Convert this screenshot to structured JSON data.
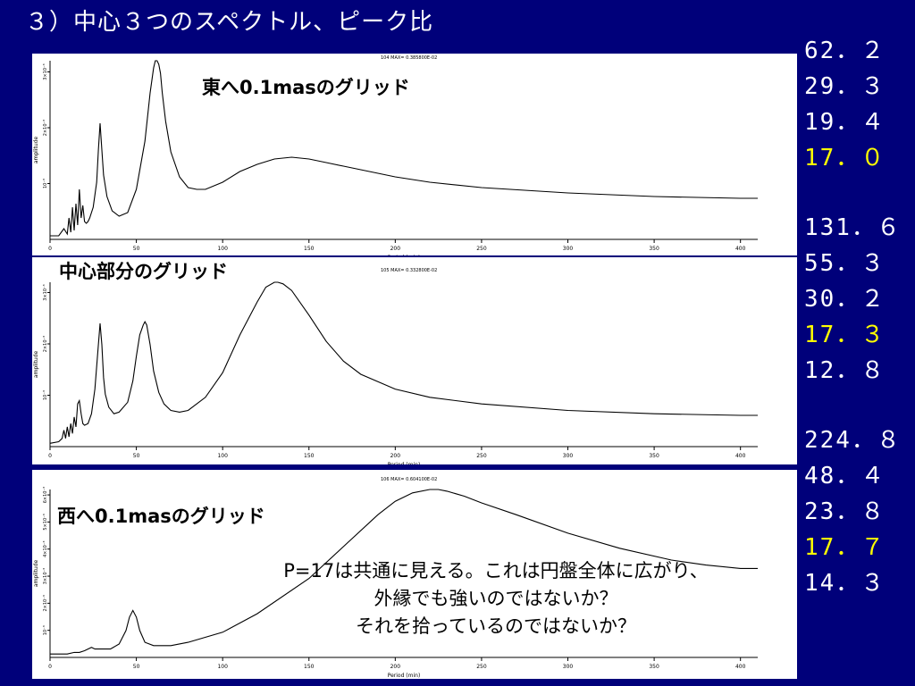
{
  "title": "３）中心３つのスペクトル、ピーク比",
  "values": {
    "group1": [
      "62．２",
      "29．３",
      "19．４",
      "17．０"
    ],
    "group1_highlight": 3,
    "group2": [
      "131．６",
      "55．３",
      "30．２",
      "17．３",
      "12．８"
    ],
    "group2_highlight": 3,
    "group3": [
      "224．８",
      "48．４",
      "23．８",
      "17．７",
      "14．３"
    ],
    "group3_highlight": 3
  },
  "note": {
    "line1": "P=17は共通に見える。これは円盤全体に広がり、",
    "line2": "外縁でも強いのではないか？",
    "line3": "それを拾っているのではないか？"
  },
  "colors": {
    "background": "#00007a",
    "text": "#ffffff",
    "highlight": "#ffff00",
    "curve": "#000000"
  },
  "chart_data": [
    {
      "type": "line",
      "label": "東へ0.1masのグリッド",
      "header": "104 MAX=  0.385800E-02",
      "xlabel": "Period (min)",
      "ylabel": "amplitude",
      "xlim": [
        0,
        410
      ],
      "xticks": [
        "0",
        "50",
        "100",
        "150",
        "200",
        "250",
        "300",
        "350",
        "400"
      ],
      "yticks": [
        "10⁻³",
        "2×10⁻³",
        "3×10⁻³"
      ],
      "peaks": [
        62.2,
        29.3,
        19.4,
        17.0
      ],
      "x": [
        0,
        5,
        8,
        10,
        11,
        12,
        13,
        14,
        15,
        16,
        17,
        18,
        19,
        20,
        21,
        22,
        23,
        25,
        27,
        28,
        29,
        30,
        31,
        33,
        36,
        40,
        45,
        50,
        55,
        58,
        60,
        61,
        62,
        63,
        64,
        65,
        67,
        70,
        75,
        80,
        85,
        90,
        100,
        110,
        120,
        130,
        140,
        150,
        160,
        170,
        180,
        200,
        220,
        250,
        300,
        350,
        400,
        410
      ],
      "y": [
        0.02,
        0.02,
        0.06,
        0.03,
        0.12,
        0.04,
        0.18,
        0.05,
        0.2,
        0.08,
        0.28,
        0.12,
        0.19,
        0.1,
        0.09,
        0.1,
        0.12,
        0.18,
        0.32,
        0.5,
        0.65,
        0.5,
        0.36,
        0.24,
        0.16,
        0.13,
        0.15,
        0.28,
        0.55,
        0.82,
        0.96,
        1.0,
        1.0,
        0.98,
        0.93,
        0.82,
        0.66,
        0.49,
        0.35,
        0.29,
        0.28,
        0.28,
        0.32,
        0.38,
        0.42,
        0.45,
        0.46,
        0.45,
        0.43,
        0.41,
        0.39,
        0.35,
        0.32,
        0.29,
        0.26,
        0.24,
        0.23,
        0.23
      ]
    },
    {
      "type": "line",
      "label": "中心部分のグリッド",
      "header": "105 MAX=  0.332800E-02",
      "xlabel": "Period (min)",
      "ylabel": "amplitude",
      "xlim": [
        0,
        410
      ],
      "xticks": [
        "0",
        "50",
        "100",
        "150",
        "200",
        "250",
        "300",
        "350",
        "400"
      ],
      "yticks": [
        "10⁻³",
        "2×10⁻³",
        "3×10⁻³"
      ],
      "peaks": [
        131.6,
        55.3,
        30.2,
        17.3,
        12.8
      ],
      "x": [
        0,
        5,
        7,
        8,
        9,
        10,
        11,
        12,
        13,
        14,
        15,
        16,
        17,
        18,
        19,
        20,
        22,
        24,
        26,
        28,
        29,
        30,
        31,
        32,
        34,
        37,
        40,
        45,
        48,
        50,
        52,
        54,
        55,
        56,
        58,
        60,
        63,
        66,
        70,
        75,
        80,
        90,
        100,
        110,
        120,
        125,
        130,
        132,
        135,
        140,
        150,
        160,
        170,
        180,
        200,
        220,
        250,
        300,
        350,
        400,
        410
      ],
      "y": [
        0.02,
        0.03,
        0.05,
        0.1,
        0.05,
        0.12,
        0.06,
        0.14,
        0.08,
        0.18,
        0.12,
        0.26,
        0.28,
        0.2,
        0.14,
        0.13,
        0.14,
        0.2,
        0.35,
        0.62,
        0.75,
        0.62,
        0.42,
        0.32,
        0.24,
        0.2,
        0.21,
        0.27,
        0.4,
        0.55,
        0.68,
        0.74,
        0.76,
        0.74,
        0.62,
        0.46,
        0.33,
        0.26,
        0.22,
        0.21,
        0.22,
        0.3,
        0.45,
        0.68,
        0.88,
        0.97,
        1.0,
        1.0,
        0.99,
        0.95,
        0.8,
        0.64,
        0.52,
        0.44,
        0.35,
        0.3,
        0.26,
        0.22,
        0.2,
        0.19,
        0.19
      ]
    },
    {
      "type": "line",
      "label": "西へ0.1masのグリッド",
      "header": "106 MAX=  0.604100E-02",
      "xlabel": "Period (min)",
      "ylabel": "amplitude",
      "xlim": [
        0,
        410
      ],
      "xticks": [
        "0",
        "50",
        "100",
        "150",
        "200",
        "250",
        "300",
        "350",
        "400"
      ],
      "yticks": [
        "10⁻³",
        "2×10⁻³",
        "3×10⁻³",
        "4×10⁻³",
        "5×10⁻³",
        "6×10⁻³"
      ],
      "peaks": [
        224.8,
        48.4,
        23.8,
        17.7,
        14.3
      ],
      "x": [
        0,
        10,
        14,
        17,
        20,
        22,
        24,
        26,
        30,
        35,
        40,
        44,
        46,
        48,
        50,
        52,
        55,
        60,
        70,
        80,
        100,
        120,
        150,
        170,
        190,
        200,
        210,
        220,
        225,
        230,
        240,
        250,
        270,
        300,
        330,
        360,
        380,
        400,
        410
      ],
      "y": [
        0.02,
        0.02,
        0.03,
        0.03,
        0.04,
        0.05,
        0.06,
        0.05,
        0.05,
        0.05,
        0.08,
        0.16,
        0.24,
        0.28,
        0.24,
        0.16,
        0.09,
        0.07,
        0.07,
        0.09,
        0.15,
        0.26,
        0.47,
        0.66,
        0.85,
        0.93,
        0.98,
        1.0,
        1.0,
        0.99,
        0.96,
        0.92,
        0.85,
        0.74,
        0.65,
        0.58,
        0.55,
        0.53,
        0.53
      ]
    }
  ]
}
